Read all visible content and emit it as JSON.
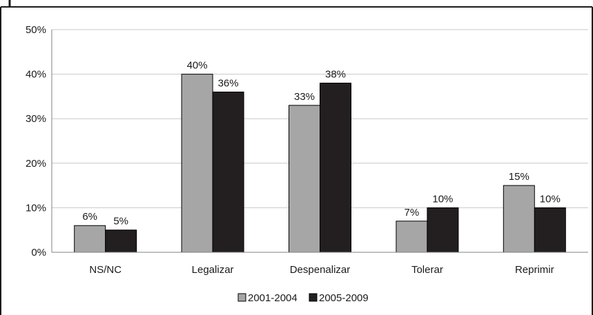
{
  "chart_data": {
    "type": "bar",
    "categories": [
      "NS/NC",
      "Legalizar",
      "Despenalizar",
      "Tolerar",
      "Reprimir"
    ],
    "series": [
      {
        "name": "2001-2004",
        "values": [
          6,
          40,
          33,
          7,
          15
        ],
        "labels": [
          "6%",
          "40%",
          "33%",
          "7%",
          "15%"
        ],
        "color": "#a6a6a6"
      },
      {
        "name": "2005-2009",
        "values": [
          5,
          36,
          38,
          10,
          10
        ],
        "labels": [
          "5%",
          "36%",
          "38%",
          "10%",
          "10%"
        ],
        "color": "#231f20"
      }
    ],
    "y_ticks": [
      "0%",
      "10%",
      "20%",
      "30%",
      "40%",
      "50%"
    ],
    "ylim": [
      0,
      50
    ],
    "grid": true,
    "legend_position": "bottom"
  }
}
